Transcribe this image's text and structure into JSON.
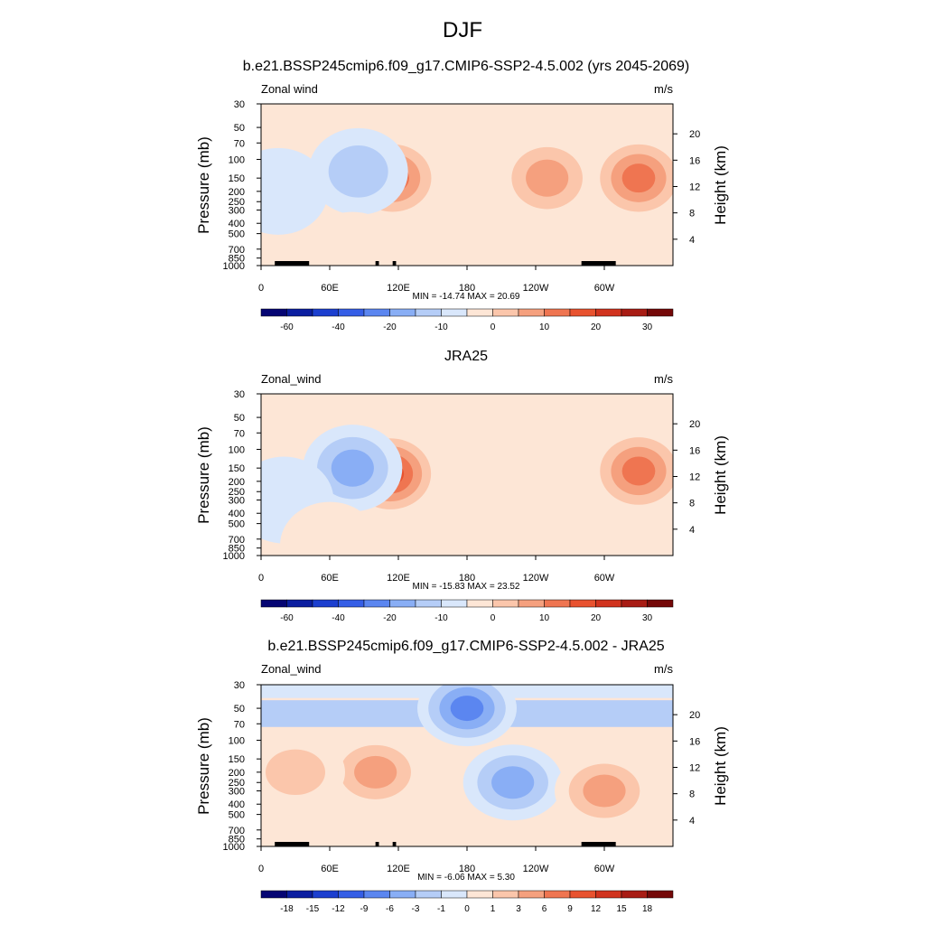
{
  "figure_title": "DJF",
  "color_palette": {
    "diverging_cold_to_warm": [
      "#050573",
      "#0b1ea0",
      "#1c3fcf",
      "#355ee6",
      "#5b86f0",
      "#89aef5",
      "#b5cdf7",
      "#d9e7fb",
      "#fde6d6",
      "#fbc6ab",
      "#f5a07e",
      "#ef7551",
      "#e8522f",
      "#d1331e",
      "#a81c14",
      "#740808"
    ]
  },
  "chart_data": [
    {
      "type": "heatmap",
      "title": "b.e21.BSSP245cmip6.f09_g17.CMIP6-SSP2-4.5.002 (yrs 2045-2069)",
      "left_label": "Zonal wind",
      "right_label": "m/s",
      "xlabel": "",
      "ylabel": "Pressure (mb)",
      "y2label": "Height (km)",
      "x_ticks": [
        "0",
        "60E",
        "120E",
        "180",
        "120W",
        "60W"
      ],
      "y_ticks": [
        "30",
        "50",
        "70",
        "100",
        "150",
        "200",
        "250",
        "300",
        "400",
        "500",
        "700",
        "850",
        "1000"
      ],
      "y2_ticks": [
        "20",
        "16",
        "12",
        "8",
        "4"
      ],
      "y_scale": "log",
      "stats": "MIN = -14.74  MAX =  20.69",
      "min": -14.74,
      "max": 20.69,
      "colorbar_labels": [
        "-60",
        "-40",
        "-20",
        "-10",
        "0",
        "10",
        "20",
        "30"
      ],
      "features": [
        {
          "lon": 115,
          "p": 150,
          "value": 18
        },
        {
          "lon": 250,
          "p": 150,
          "value": 15
        },
        {
          "lon": 330,
          "p": 150,
          "value": 20
        },
        {
          "lon": 85,
          "p": 130,
          "value": -8
        },
        {
          "lon": 15,
          "p": 200,
          "value": -4
        },
        {
          "lon": 80,
          "p": 800,
          "value": 4
        },
        {
          "lon": 240,
          "p": 800,
          "value": 3
        }
      ]
    },
    {
      "type": "heatmap",
      "title": "JRA25",
      "left_label": "Zonal_wind",
      "right_label": "m/s",
      "xlabel": "",
      "ylabel": "Pressure (mb)",
      "y2label": "Height (km)",
      "x_ticks": [
        "0",
        "60E",
        "120E",
        "180",
        "120W",
        "60W"
      ],
      "y_ticks": [
        "30",
        "50",
        "70",
        "100",
        "150",
        "200",
        "250",
        "300",
        "400",
        "500",
        "700",
        "850",
        "1000"
      ],
      "y2_ticks": [
        "20",
        "16",
        "12",
        "8",
        "4"
      ],
      "y_scale": "log",
      "stats": "MIN = -15.83  MAX =  23.52",
      "min": -15.83,
      "max": 23.52,
      "colorbar_labels": [
        "-60",
        "-40",
        "-20",
        "-10",
        "0",
        "10",
        "20",
        "30"
      ],
      "features": [
        {
          "lon": 113,
          "p": 170,
          "value": 23
        },
        {
          "lon": 330,
          "p": 160,
          "value": 17
        },
        {
          "lon": 80,
          "p": 150,
          "value": -12
        },
        {
          "lon": 20,
          "p": 300,
          "value": -4
        },
        {
          "lon": 60,
          "p": 800,
          "value": 3
        }
      ]
    },
    {
      "type": "heatmap",
      "title": "b.e21.BSSP245cmip6.f09_g17.CMIP6-SSP2-4.5.002 - JRA25",
      "left_label": "Zonal_wind",
      "right_label": "m/s",
      "xlabel": "",
      "ylabel": "Pressure (mb)",
      "y2label": "Height (km)",
      "x_ticks": [
        "0",
        "60E",
        "120E",
        "180",
        "120W",
        "60W"
      ],
      "y_ticks": [
        "30",
        "50",
        "70",
        "100",
        "150",
        "200",
        "250",
        "300",
        "400",
        "500",
        "700",
        "850",
        "1000"
      ],
      "y2_ticks": [
        "20",
        "16",
        "12",
        "8",
        "4"
      ],
      "y_scale": "log",
      "stats": "MIN =  -6.06  MAX =   5.30",
      "min": -6.06,
      "max": 5.3,
      "colorbar_labels": [
        "-18",
        "-15",
        "-12",
        "-9",
        "-6",
        "-3",
        "-1",
        "0",
        "1",
        "3",
        "6",
        "9",
        "12",
        "15",
        "18"
      ],
      "features": [
        {
          "lon": 180,
          "p": 50,
          "value": -5
        },
        {
          "lon": 100,
          "p": 200,
          "value": 3
        },
        {
          "lon": 220,
          "p": 250,
          "value": -4
        },
        {
          "lon": 300,
          "p": 300,
          "value": 3
        },
        {
          "lon": 30,
          "p": 200,
          "value": 2
        }
      ]
    }
  ]
}
